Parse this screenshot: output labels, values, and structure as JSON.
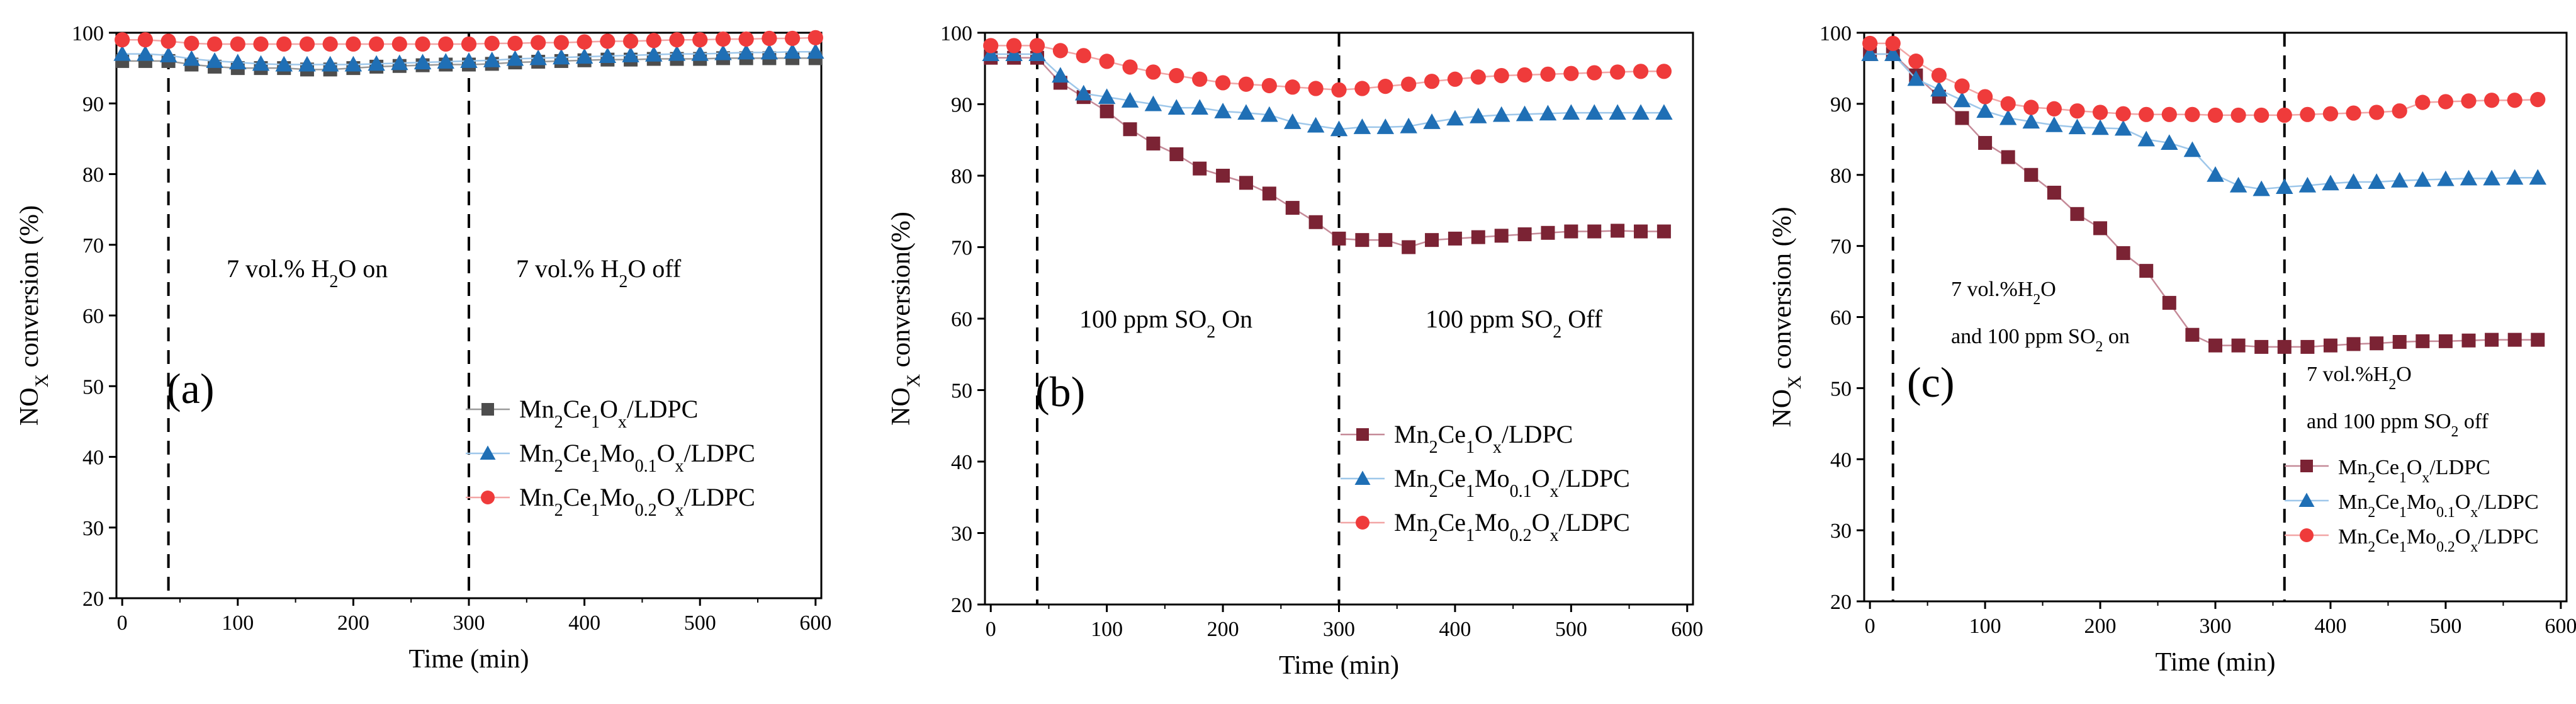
{
  "colors": {
    "s1": "#7b2334",
    "s1_gray": "#4d4d4d",
    "s2": "#1f6fb5",
    "s3": "#ef3b3b",
    "s3_line": "#f2a5a5",
    "s1_line_gray": "#9a9a9a",
    "s1_line": "#c58a98",
    "s2_line": "#9ec7ea"
  },
  "chart_data": [
    {
      "type": "line",
      "panel_label": "(a)",
      "xlabel": "Time (min)",
      "ylabel_main": "NO",
      "ylabel_sub": "X",
      "ylabel_rest": " conversion (%)",
      "xlim": [
        -5,
        605
      ],
      "ylim": [
        20,
        100
      ],
      "xticks": [
        0,
        100,
        200,
        300,
        400,
        500,
        600
      ],
      "yticks": [
        20,
        30,
        40,
        50,
        60,
        70,
        80,
        90,
        100
      ],
      "vlines": [
        40,
        300
      ],
      "annotations": [
        {
          "id": "on",
          "line1": "7 vol.% H",
          "sub1": "2",
          "rest1": "O on",
          "line2": "",
          "sub2": "",
          "rest2": ""
        },
        {
          "id": "off",
          "line1": "7 vol.% H",
          "sub1": "2",
          "rest1": "O off",
          "line2": "",
          "sub2": "",
          "rest2": ""
        }
      ],
      "x": [
        0,
        20,
        40,
        60,
        80,
        100,
        120,
        140,
        160,
        180,
        200,
        220,
        240,
        260,
        280,
        300,
        320,
        340,
        360,
        380,
        400,
        420,
        440,
        460,
        480,
        500,
        520,
        540,
        560,
        580,
        600
      ],
      "series": [
        {
          "key": "s1",
          "legend": {
            "a": "Mn",
            "b": "2",
            "c": "Ce",
            "d": "1",
            "e": "O",
            "f": "x",
            "g": "/LDPC"
          },
          "marker": "square",
          "values": [
            96,
            96,
            96,
            95.5,
            95.2,
            95,
            95,
            95,
            94.8,
            94.8,
            95,
            95.2,
            95.3,
            95.4,
            95.5,
            95.5,
            95.6,
            95.8,
            95.9,
            96,
            96.1,
            96.2,
            96.2,
            96.3,
            96.3,
            96.3,
            96.4,
            96.4,
            96.4,
            96.4,
            96.4
          ]
        },
        {
          "key": "s2",
          "legend": {
            "a": "Mn",
            "b": "2",
            "c": "Ce",
            "d": "1",
            "e": "Mo",
            "f": "0.1",
            "g": "O",
            "h": "x",
            "i": "/LDPC"
          },
          "marker": "triangle",
          "values": [
            97,
            97,
            96.8,
            96.3,
            96,
            95.8,
            95.6,
            95.5,
            95.5,
            95.5,
            95.5,
            95.6,
            95.7,
            95.8,
            95.9,
            96,
            96.1,
            96.3,
            96.4,
            96.5,
            96.6,
            96.7,
            96.8,
            96.9,
            97,
            97,
            97.1,
            97.2,
            97.2,
            97.3,
            97.3
          ]
        },
        {
          "key": "s3",
          "legend": {
            "a": "Mn",
            "b": "2",
            "c": "Ce",
            "d": "1",
            "e": "Mo",
            "f": "0.2",
            "g": "O",
            "h": "x",
            "i": "/LDPC"
          },
          "marker": "circle",
          "values": [
            99,
            99,
            98.8,
            98.5,
            98.4,
            98.4,
            98.4,
            98.4,
            98.4,
            98.4,
            98.4,
            98.4,
            98.4,
            98.4,
            98.4,
            98.4,
            98.5,
            98.5,
            98.6,
            98.6,
            98.7,
            98.8,
            98.8,
            98.9,
            99,
            99,
            99.1,
            99.1,
            99.2,
            99.2,
            99.3
          ]
        }
      ]
    },
    {
      "type": "line",
      "panel_label": "(b)",
      "xlabel": "Time (min)",
      "ylabel_main": "NO",
      "ylabel_sub": "X",
      "ylabel_rest": " conversion(%)",
      "xlim": [
        -5,
        605
      ],
      "ylim": [
        20,
        100
      ],
      "xticks": [
        0,
        100,
        200,
        300,
        400,
        500,
        600
      ],
      "yticks": [
        20,
        30,
        40,
        50,
        60,
        70,
        80,
        90,
        100
      ],
      "vlines": [
        40,
        300
      ],
      "annotations": [
        {
          "id": "on",
          "line1": "100 ppm SO",
          "sub1": "2",
          "rest1": " On",
          "line2": "",
          "sub2": "",
          "rest2": ""
        },
        {
          "id": "off",
          "line1": "100 ppm SO",
          "sub1": "2",
          "rest1": " Off",
          "line2": "",
          "sub2": "",
          "rest2": ""
        }
      ],
      "x": [
        0,
        20,
        40,
        60,
        80,
        100,
        120,
        140,
        160,
        180,
        200,
        220,
        240,
        260,
        280,
        300,
        320,
        340,
        360,
        380,
        400,
        420,
        440,
        460,
        480,
        500,
        520,
        540,
        560,
        580
      ],
      "series": [
        {
          "key": "s1",
          "legend": {
            "a": "Mn",
            "b": "2",
            "c": "Ce",
            "d": "1",
            "e": "O",
            "f": "x",
            "g": "/LDPC"
          },
          "marker": "square",
          "values": [
            96.5,
            96.5,
            96.5,
            93,
            91,
            89,
            86.5,
            84.5,
            83,
            81,
            80,
            79,
            77.5,
            75.5,
            73.5,
            71.2,
            71,
            71,
            70,
            71,
            71.2,
            71.4,
            71.6,
            71.8,
            72,
            72.2,
            72.2,
            72.3,
            72.2,
            72.2
          ]
        },
        {
          "key": "s2",
          "legend": {
            "a": "Mn",
            "b": "2",
            "c": "Ce",
            "d": "1",
            "e": "Mo",
            "f": "0.1",
            "g": "O",
            "h": "x",
            "i": "/LDPC"
          },
          "marker": "triangle",
          "values": [
            97,
            97,
            97,
            94,
            91.5,
            91,
            90.5,
            90,
            89.5,
            89.5,
            89,
            88.8,
            88.5,
            87.5,
            87,
            86.5,
            86.8,
            86.8,
            86.9,
            87.5,
            88,
            88.3,
            88.5,
            88.6,
            88.7,
            88.8,
            88.8,
            88.8,
            88.8,
            88.8
          ]
        },
        {
          "key": "s3",
          "legend": {
            "a": "Mn",
            "b": "2",
            "c": "Ce",
            "d": "1",
            "e": "Mo",
            "f": "0.2",
            "g": "O",
            "h": "x",
            "i": "/LDPC"
          },
          "marker": "circle",
          "values": [
            98.2,
            98.2,
            98.2,
            97.5,
            96.8,
            96,
            95.2,
            94.5,
            94,
            93.5,
            93,
            92.8,
            92.6,
            92.4,
            92.2,
            92,
            92.2,
            92.5,
            92.8,
            93.2,
            93.5,
            93.8,
            94,
            94.1,
            94.2,
            94.3,
            94.4,
            94.5,
            94.6,
            94.6
          ]
        }
      ]
    },
    {
      "type": "line",
      "panel_label": "(c)",
      "xlabel": "Time (min)",
      "ylabel_main": "NO",
      "ylabel_sub": "X",
      "ylabel_rest": " conversion (%)",
      "xlim": [
        -5,
        605
      ],
      "ylim": [
        20,
        100
      ],
      "xticks": [
        0,
        100,
        200,
        300,
        400,
        500,
        600
      ],
      "yticks": [
        20,
        30,
        40,
        50,
        60,
        70,
        80,
        90,
        100
      ],
      "vlines": [
        20,
        360
      ],
      "annotations": [
        {
          "id": "on",
          "line1": "7 vol.%H",
          "sub1": "2",
          "rest1": "O",
          "line2": "and 100 ppm SO",
          "sub2": "2",
          "rest2": " on"
        },
        {
          "id": "off",
          "line1": "7 vol.%H",
          "sub1": "2",
          "rest1": "O",
          "line2": "and 100 ppm SO",
          "sub2": "2",
          "rest2": " off"
        }
      ],
      "x": [
        0,
        20,
        40,
        60,
        80,
        100,
        120,
        140,
        160,
        180,
        200,
        220,
        240,
        260,
        280,
        300,
        320,
        340,
        360,
        380,
        400,
        420,
        440,
        460,
        480,
        500,
        520,
        540,
        560,
        580
      ],
      "series": [
        {
          "key": "s1",
          "legend": {
            "a": "Mn",
            "b": "2",
            "c": "Ce",
            "d": "1",
            "e": "O",
            "f": "x",
            "g": "/LDPC"
          },
          "marker": "square",
          "values": [
            97,
            97,
            94,
            91,
            88,
            84.5,
            82.5,
            80,
            77.5,
            74.5,
            72.5,
            69,
            66.5,
            62,
            57.5,
            56,
            56,
            55.8,
            55.8,
            55.8,
            56,
            56.2,
            56.3,
            56.5,
            56.6,
            56.6,
            56.7,
            56.8,
            56.8,
            56.8
          ]
        },
        {
          "key": "s2",
          "legend": {
            "a": "Mn",
            "b": "2",
            "c": "Ce",
            "d": "1",
            "e": "Mo",
            "f": "0.1",
            "g": "O",
            "h": "x",
            "i": "/LDPC"
          },
          "marker": "triangle",
          "values": [
            97,
            97,
            93.5,
            92,
            90.5,
            89,
            88,
            87.5,
            87,
            86.7,
            86.6,
            86.5,
            85,
            84.5,
            83.5,
            80,
            78.5,
            78,
            78.3,
            78.5,
            78.8,
            79,
            79,
            79.2,
            79.3,
            79.4,
            79.5,
            79.5,
            79.6,
            79.6
          ]
        },
        {
          "key": "s3",
          "legend": {
            "a": "Mn",
            "b": "2",
            "c": "Ce",
            "d": "1",
            "e": "Mo",
            "f": "0.2",
            "g": "O",
            "h": "x",
            "i": "/LDPC"
          },
          "marker": "circle",
          "values": [
            98.5,
            98.5,
            96,
            94,
            92.5,
            91,
            90,
            89.5,
            89.3,
            89,
            88.8,
            88.6,
            88.5,
            88.5,
            88.5,
            88.4,
            88.4,
            88.4,
            88.4,
            88.5,
            88.6,
            88.7,
            88.8,
            89,
            90.2,
            90.3,
            90.4,
            90.5,
            90.5,
            90.6
          ]
        }
      ]
    }
  ]
}
